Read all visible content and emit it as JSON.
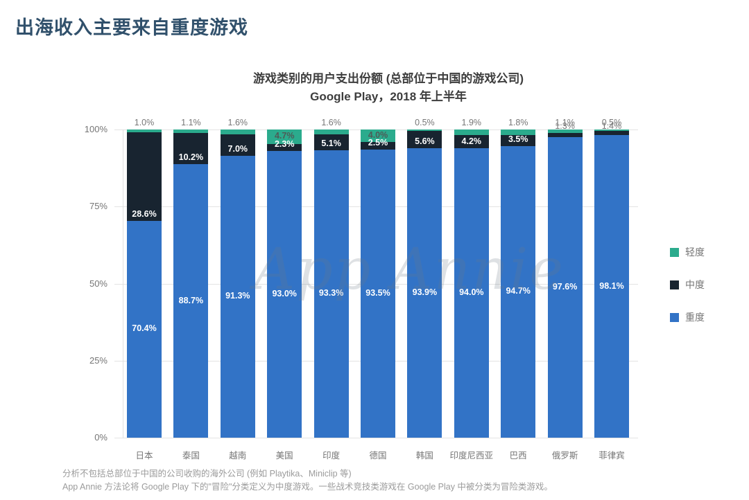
{
  "page_title": "出海收入主要来自重度游戏",
  "chart_data": {
    "type": "bar",
    "stacked": true,
    "title": "游戏类别的用户支出份额 (总部位于中国的游戏公司)",
    "subtitle": "Google Play，2018 年上半年",
    "categories": [
      "日本",
      "泰国",
      "越南",
      "美国",
      "印度",
      "德国",
      "韩国",
      "印度尼西亚",
      "巴西",
      "俄罗斯",
      "菲律宾"
    ],
    "series": [
      {
        "name": "轻度",
        "color": "#2BAB8D",
        "values": [
          1.0,
          1.1,
          1.6,
          4.7,
          1.6,
          4.0,
          0.5,
          1.9,
          1.8,
          1.1,
          0.5
        ]
      },
      {
        "name": "中度",
        "color": "#182430",
        "values": [
          28.6,
          10.2,
          7.0,
          2.3,
          5.1,
          2.5,
          5.6,
          4.2,
          3.5,
          1.3,
          1.4
        ]
      },
      {
        "name": "重度",
        "color": "#3273C6",
        "values": [
          70.4,
          88.7,
          91.3,
          93.0,
          93.3,
          93.5,
          93.9,
          94.0,
          94.7,
          97.6,
          98.1
        ]
      }
    ],
    "ylabel": "",
    "xlabel": "",
    "ylim": [
      0,
      100
    ],
    "yticks": [
      0,
      25,
      50,
      75,
      100
    ],
    "ytick_labels": [
      "0%",
      "25%",
      "50%",
      "75%",
      "100%"
    ],
    "grid": true,
    "legend_position": "right",
    "watermark": "App Annie"
  },
  "footnotes": [
    "分析不包括总部位于中国的公司收购的海外公司 (例如 Playtika、Miniclip 等)",
    "App Annie 方法论将 Google Play 下的\"冒险\"分类定义为中度游戏。一些战术竞技类游戏在 Google Play 中被分类为冒险类游戏。"
  ],
  "colors": {
    "page_title": "#30506B",
    "chart_title": "#3D3D3D",
    "axis_text": "#757575",
    "grid_line": "#E3E3E3",
    "footnote_text": "#9B9B9B"
  }
}
